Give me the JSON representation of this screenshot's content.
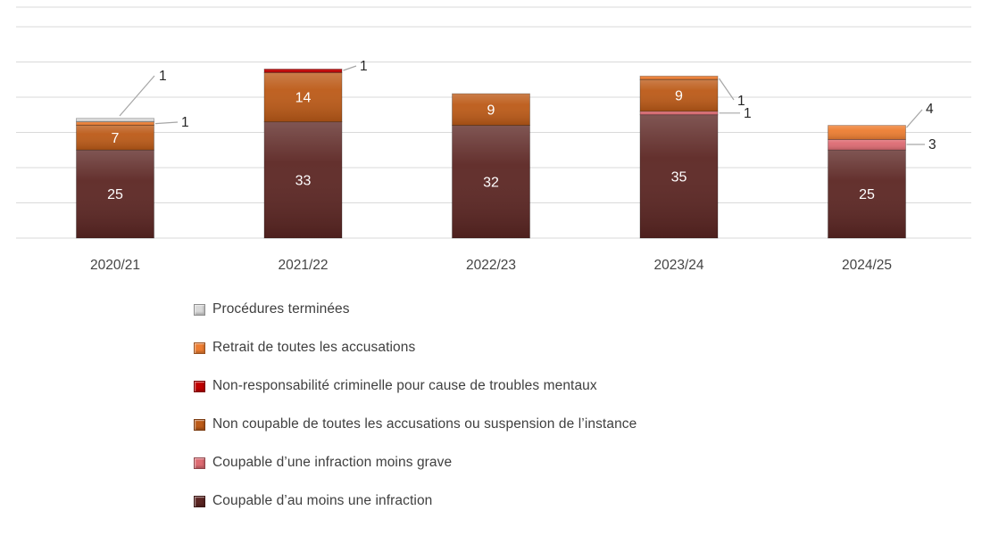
{
  "chart_data": {
    "type": "bar",
    "stacked": true,
    "categories": [
      "2020/21",
      "2021/22",
      "2022/23",
      "2023/24",
      "2024/25"
    ],
    "series": [
      {
        "name": "Coupable d’au moins une infraction",
        "color": "#5C2623",
        "values": [
          25,
          33,
          32,
          35,
          25
        ]
      },
      {
        "name": "Coupable d’une infraction moins grave",
        "color": "#DD6B72",
        "values": [
          0,
          0,
          0,
          1,
          3
        ]
      },
      {
        "name": "Non coupable de toutes les accusations ou suspension de l’instance",
        "color": "#BC5A17",
        "values": [
          7,
          14,
          9,
          9,
          0
        ]
      },
      {
        "name": "Non-responsabilité criminelle pour cause de troubles mentaux",
        "color": "#C00000",
        "values": [
          0,
          1,
          0,
          0,
          0
        ]
      },
      {
        "name": "Retrait de toutes les accusations",
        "color": "#ED7D31",
        "values": [
          1,
          0,
          0,
          1,
          4
        ]
      },
      {
        "name": "Procédures terminées",
        "color": "#D9D9D9",
        "values": [
          1,
          0,
          0,
          0,
          0
        ]
      }
    ],
    "callouts": [
      {
        "category": "2020/21",
        "series": "Procédures terminées",
        "value": 1
      },
      {
        "category": "2020/21",
        "series": "Retrait de toutes les accusations",
        "value": 1
      },
      {
        "category": "2021/22",
        "series": "Non-responsabilité criminelle pour cause de troubles mentaux",
        "value": 1
      },
      {
        "category": "2023/24",
        "series": "Retrait de toutes les accusations",
        "value": 1
      },
      {
        "category": "2023/24",
        "series": "Coupable d’une infraction moins grave",
        "value": 1
      },
      {
        "category": "2024/25",
        "series": "Retrait de toutes les accusations",
        "value": 4
      },
      {
        "category": "2024/25",
        "series": "Coupable d’une infraction moins grave",
        "value": 3
      }
    ],
    "ylim": [
      0,
      60
    ],
    "grid": true,
    "gridline_color": "#d9d9d9",
    "data_label_color": "#ffffff",
    "callout_label_color": "#262626",
    "axis_label_color": "#444444",
    "legend_position": "bottom-left",
    "legend_order": "reverse-of-series"
  }
}
